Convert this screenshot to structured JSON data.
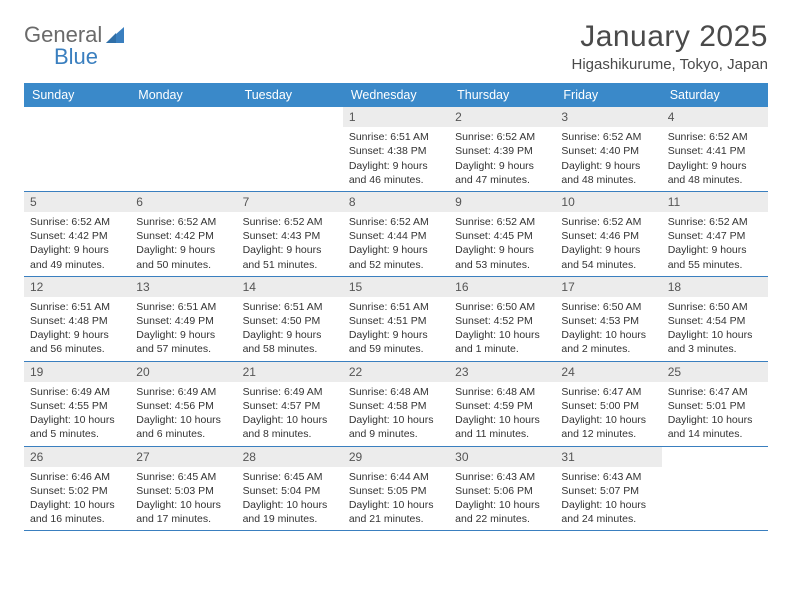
{
  "brand": {
    "part1": "General",
    "part2": "Blue"
  },
  "title": "January 2025",
  "location": "Higashikurume, Tokyo, Japan",
  "colors": {
    "headerBar": "#3a89c9",
    "dayNumBg": "#ececec",
    "rowBorder": "#3a7fbf",
    "textDark": "#333333",
    "textMuted": "#555555",
    "brandGray": "#6a6a6a",
    "brandBlue": "#3a7fbf"
  },
  "daysOfWeek": [
    "Sunday",
    "Monday",
    "Tuesday",
    "Wednesday",
    "Thursday",
    "Friday",
    "Saturday"
  ],
  "layout": {
    "firstDayIndex": 3,
    "daysInMonth": 31
  },
  "days": [
    {
      "n": 1,
      "sunrise": "6:51 AM",
      "sunset": "4:38 PM",
      "dlh": 9,
      "dlm": 46
    },
    {
      "n": 2,
      "sunrise": "6:52 AM",
      "sunset": "4:39 PM",
      "dlh": 9,
      "dlm": 47
    },
    {
      "n": 3,
      "sunrise": "6:52 AM",
      "sunset": "4:40 PM",
      "dlh": 9,
      "dlm": 48
    },
    {
      "n": 4,
      "sunrise": "6:52 AM",
      "sunset": "4:41 PM",
      "dlh": 9,
      "dlm": 48
    },
    {
      "n": 5,
      "sunrise": "6:52 AM",
      "sunset": "4:42 PM",
      "dlh": 9,
      "dlm": 49
    },
    {
      "n": 6,
      "sunrise": "6:52 AM",
      "sunset": "4:42 PM",
      "dlh": 9,
      "dlm": 50
    },
    {
      "n": 7,
      "sunrise": "6:52 AM",
      "sunset": "4:43 PM",
      "dlh": 9,
      "dlm": 51
    },
    {
      "n": 8,
      "sunrise": "6:52 AM",
      "sunset": "4:44 PM",
      "dlh": 9,
      "dlm": 52
    },
    {
      "n": 9,
      "sunrise": "6:52 AM",
      "sunset": "4:45 PM",
      "dlh": 9,
      "dlm": 53
    },
    {
      "n": 10,
      "sunrise": "6:52 AM",
      "sunset": "4:46 PM",
      "dlh": 9,
      "dlm": 54
    },
    {
      "n": 11,
      "sunrise": "6:52 AM",
      "sunset": "4:47 PM",
      "dlh": 9,
      "dlm": 55
    },
    {
      "n": 12,
      "sunrise": "6:51 AM",
      "sunset": "4:48 PM",
      "dlh": 9,
      "dlm": 56
    },
    {
      "n": 13,
      "sunrise": "6:51 AM",
      "sunset": "4:49 PM",
      "dlh": 9,
      "dlm": 57
    },
    {
      "n": 14,
      "sunrise": "6:51 AM",
      "sunset": "4:50 PM",
      "dlh": 9,
      "dlm": 58
    },
    {
      "n": 15,
      "sunrise": "6:51 AM",
      "sunset": "4:51 PM",
      "dlh": 9,
      "dlm": 59
    },
    {
      "n": 16,
      "sunrise": "6:50 AM",
      "sunset": "4:52 PM",
      "dlh": 10,
      "dlm": 1
    },
    {
      "n": 17,
      "sunrise": "6:50 AM",
      "sunset": "4:53 PM",
      "dlh": 10,
      "dlm": 2
    },
    {
      "n": 18,
      "sunrise": "6:50 AM",
      "sunset": "4:54 PM",
      "dlh": 10,
      "dlm": 3
    },
    {
      "n": 19,
      "sunrise": "6:49 AM",
      "sunset": "4:55 PM",
      "dlh": 10,
      "dlm": 5
    },
    {
      "n": 20,
      "sunrise": "6:49 AM",
      "sunset": "4:56 PM",
      "dlh": 10,
      "dlm": 6
    },
    {
      "n": 21,
      "sunrise": "6:49 AM",
      "sunset": "4:57 PM",
      "dlh": 10,
      "dlm": 8
    },
    {
      "n": 22,
      "sunrise": "6:48 AM",
      "sunset": "4:58 PM",
      "dlh": 10,
      "dlm": 9
    },
    {
      "n": 23,
      "sunrise": "6:48 AM",
      "sunset": "4:59 PM",
      "dlh": 10,
      "dlm": 11
    },
    {
      "n": 24,
      "sunrise": "6:47 AM",
      "sunset": "5:00 PM",
      "dlh": 10,
      "dlm": 12
    },
    {
      "n": 25,
      "sunrise": "6:47 AM",
      "sunset": "5:01 PM",
      "dlh": 10,
      "dlm": 14
    },
    {
      "n": 26,
      "sunrise": "6:46 AM",
      "sunset": "5:02 PM",
      "dlh": 10,
      "dlm": 16
    },
    {
      "n": 27,
      "sunrise": "6:45 AM",
      "sunset": "5:03 PM",
      "dlh": 10,
      "dlm": 17
    },
    {
      "n": 28,
      "sunrise": "6:45 AM",
      "sunset": "5:04 PM",
      "dlh": 10,
      "dlm": 19
    },
    {
      "n": 29,
      "sunrise": "6:44 AM",
      "sunset": "5:05 PM",
      "dlh": 10,
      "dlm": 21
    },
    {
      "n": 30,
      "sunrise": "6:43 AM",
      "sunset": "5:06 PM",
      "dlh": 10,
      "dlm": 22
    },
    {
      "n": 31,
      "sunrise": "6:43 AM",
      "sunset": "5:07 PM",
      "dlh": 10,
      "dlm": 24
    }
  ],
  "labels": {
    "sunrise": "Sunrise:",
    "sunset": "Sunset:",
    "daylightPrefix": "Daylight:",
    "hoursWord": "hours",
    "andWord": "and",
    "minuteSingular": "minute.",
    "minutePlural": "minutes."
  }
}
